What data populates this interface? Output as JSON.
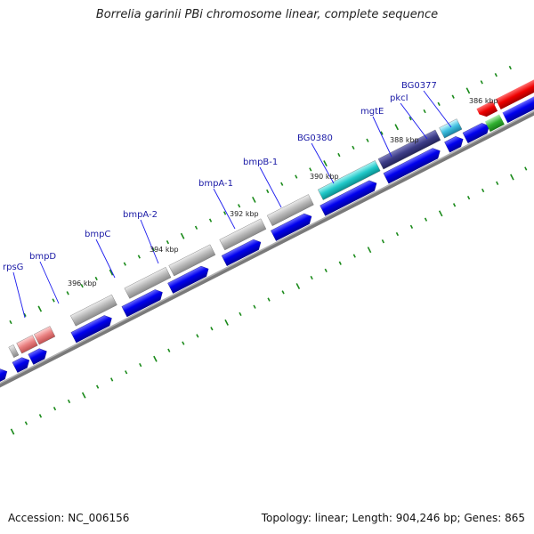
{
  "title": "Borrelia garinii PBi chromosome linear, complete sequence",
  "footer": {
    "accession": "Accession: NC_006156",
    "topology": "Topology: linear; Length: 904,246 bp; Genes: 865"
  },
  "colors": {
    "backbone": "#808080",
    "cds_blue": "#0000ee",
    "tick_green": "#1a8a1a",
    "label_blue": "#1a1aa6",
    "line_blue": "#1a1aee"
  },
  "diagram": {
    "kbp_scale": [
      {
        "label": "386 kbp",
        "kbp": 386
      },
      {
        "label": "388 kbp",
        "kbp": 388
      },
      {
        "label": "390 kbp",
        "kbp": 390
      },
      {
        "label": "392 kbp",
        "kbp": 392
      },
      {
        "label": "394 kbp",
        "kbp": 394
      },
      {
        "label": "396 kbp",
        "kbp": 396
      }
    ],
    "gene_labels": [
      {
        "name": "rpsG"
      },
      {
        "name": "bmpD"
      },
      {
        "name": "bmpC"
      },
      {
        "name": "bmpA-2"
      },
      {
        "name": "bmpA-1"
      },
      {
        "name": "bmpB-1"
      },
      {
        "name": "BG0380"
      },
      {
        "name": "mgtE"
      },
      {
        "name": "pkcI"
      },
      {
        "name": "BG0377"
      }
    ]
  }
}
